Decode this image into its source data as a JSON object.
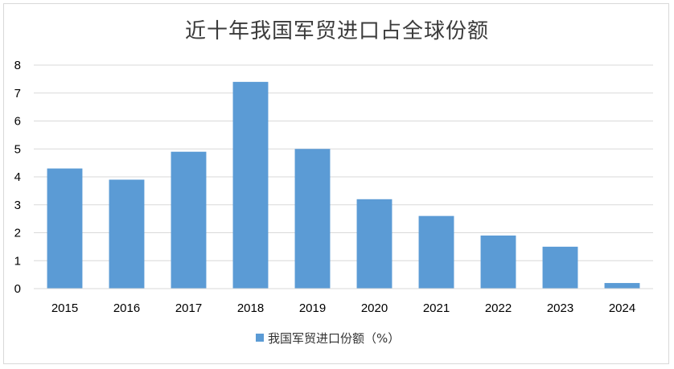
{
  "chart_data": {
    "type": "bar",
    "title": "近十年我国军贸进口占全球份额",
    "categories": [
      "2015",
      "2016",
      "2017",
      "2018",
      "2019",
      "2020",
      "2021",
      "2022",
      "2023",
      "2024"
    ],
    "series": [
      {
        "name": "我国军贸进口份额（%）",
        "values": [
          4.3,
          3.9,
          4.9,
          7.4,
          5.0,
          3.2,
          2.6,
          1.9,
          1.5,
          0.2
        ]
      }
    ],
    "ylim": [
      0,
      8
    ],
    "yticks": [
      "0",
      "1",
      "2",
      "3",
      "4",
      "5",
      "6",
      "7",
      "8"
    ],
    "grid": true,
    "legend": "bottom",
    "bar_color": "#5b9bd5",
    "grid_color": "#d9d9d9"
  }
}
